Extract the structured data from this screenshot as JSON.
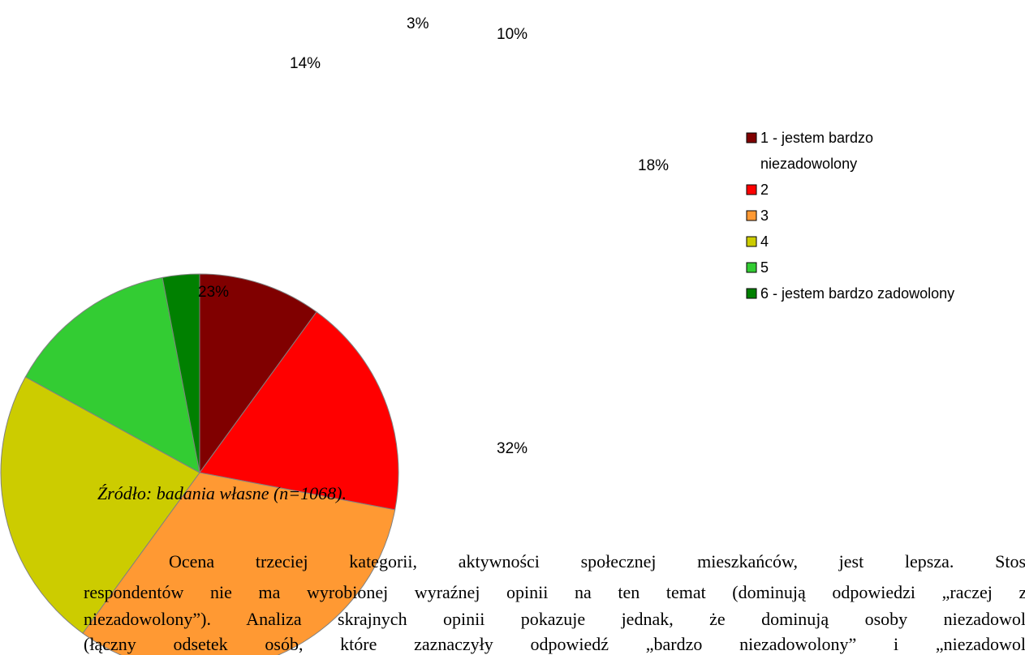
{
  "chart_data": {
    "type": "pie",
    "categories": [
      "1 - jestem bardzo niezadowolony",
      "2",
      "3",
      "4",
      "5",
      "6 - jestem bardzo zadowolony"
    ],
    "values": [
      10,
      18,
      32,
      23,
      14,
      3
    ],
    "value_labels": [
      "10%",
      "18%",
      "32%",
      "23%",
      "14%",
      "3%"
    ],
    "colors": [
      "#800000",
      "#ff0000",
      "#ff9933",
      "#cccc00",
      "#33cc33",
      "#008000"
    ],
    "legend": "right"
  },
  "source": "Źródło: badania własne (n=1068).",
  "paragraph": [
    "Ocena trzeciej kategorii, aktywności społecznej mieszkańców, jest lepsza. Stosu",
    "respondentów nie ma wyrobionej wyraźnej opinii na ten temat (dominują odpowiedzi „raczej za",
    "niezadowolony”). Analiza skrajnych opinii pokazuje jednak, że dominują osoby niezadowolo",
    "(łączny odsetek osób, które zaznaczyły odpowiedź „bardzo niezadowolony” i „niezadowolo"
  ]
}
